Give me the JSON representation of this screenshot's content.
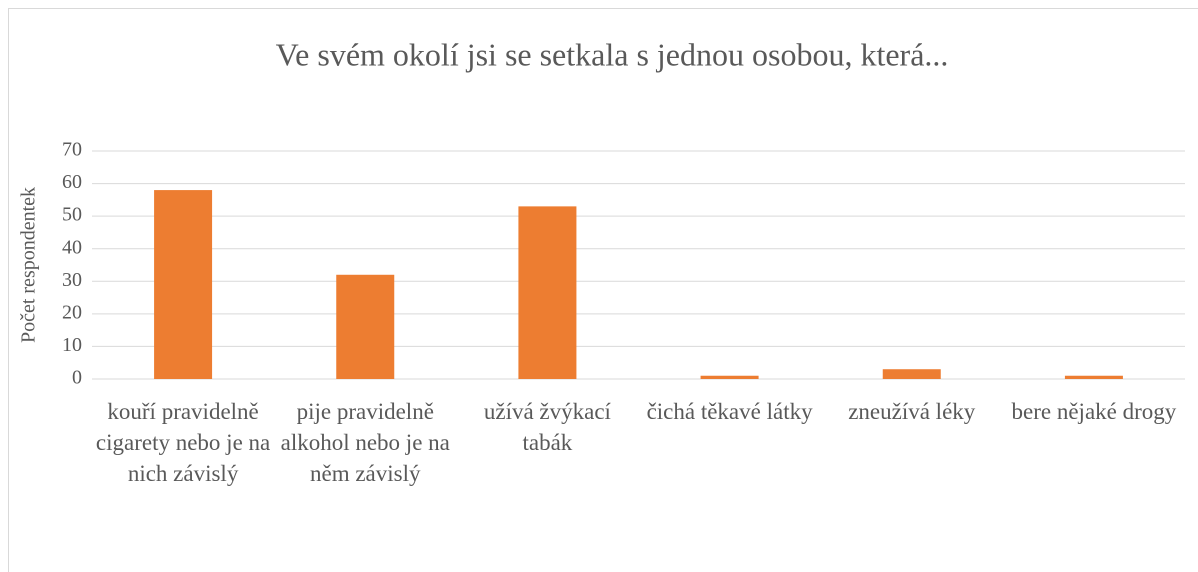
{
  "chart_data": {
    "type": "bar",
    "title": "Ve svém okolí jsi se setkala s jednou osobou, která...",
    "y_label": "Počet respondentek",
    "categories": [
      "kouří pravidelně cigarety nebo je na nich závislý",
      "pije pravidelně alkohol nebo je na něm závislý",
      "užívá žvýkací tabák",
      "čichá těkavé látky",
      "zneužívá léky",
      "bere nějaké drogy"
    ],
    "values": [
      58,
      32,
      53,
      1,
      3,
      1
    ],
    "color": "#ed7d31",
    "ylim": [
      0,
      70
    ],
    "yticks": [
      0,
      10,
      20,
      30,
      40,
      50,
      60,
      70
    ],
    "grid": true
  }
}
